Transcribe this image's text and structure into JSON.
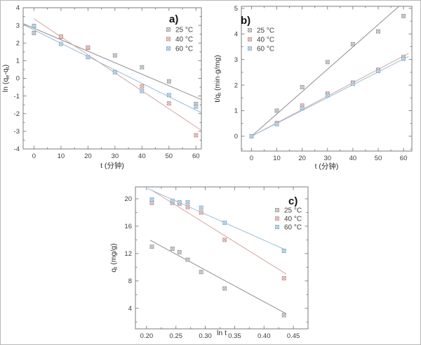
{
  "figure": {
    "description": "Adsorption kinetics figure with three panels",
    "background": "#ffffff"
  },
  "colors": {
    "frame": "#7c7c7c",
    "tick_text": "#3c3c3c",
    "label_text": "#2e2e2e",
    "panel_letter": "#111111",
    "series": {
      "25 °C": {
        "marker": "#9a9a9a",
        "fill": "#f4f4f4",
        "line": "#8f8f8f"
      },
      "40 °C": {
        "marker": "#c99090",
        "fill": "#f9eded",
        "line": "#d2a6a6"
      },
      "60 °C": {
        "marker": "#84adc9",
        "fill": "#ecf2f7",
        "line": "#9bbdd5"
      }
    }
  },
  "chart_data": [
    {
      "id": "a",
      "type": "scatter",
      "panel_label": "a)",
      "xlabel": "t (分钟)",
      "ylabel": "ln (qe-qt)",
      "ylabel_parts": [
        {
          "t": "ln (q"
        },
        {
          "t": "e",
          "sub": true
        },
        {
          "t": "-q"
        },
        {
          "t": "t",
          "sub": true
        },
        {
          "t": ")"
        }
      ],
      "xlim": [
        -4,
        62
      ],
      "ylim": [
        -4,
        4
      ],
      "xticks": [
        0,
        10,
        20,
        30,
        40,
        50,
        60
      ],
      "yticks": [
        -4,
        -3,
        -2,
        -1,
        0,
        1,
        2,
        3,
        4
      ],
      "x_tick_decimals": 0,
      "y_tick_decimals": 0,
      "legend_pos": "top-right",
      "series": [
        {
          "name": "25 °C",
          "x": [
            0,
            10,
            20,
            30,
            40,
            50,
            60
          ],
          "y": [
            2.57,
            2.35,
            1.72,
            1.3,
            0.63,
            -0.17,
            -1.45
          ],
          "fit": [
            [
              -4,
              3.1
            ],
            [
              62,
              -1.2
            ]
          ]
        },
        {
          "name": "40 °C",
          "x": [
            0,
            10,
            20,
            30,
            40,
            50,
            60
          ],
          "y": [
            2.97,
            2.37,
            1.75,
            0.35,
            -0.45,
            -1.42,
            -3.22
          ],
          "fit": [
            [
              0,
              3.37
            ],
            [
              62,
              -2.95
            ]
          ]
        },
        {
          "name": "60 °C",
          "x": [
            0,
            10,
            20,
            30,
            40,
            50,
            60
          ],
          "y": [
            2.97,
            1.95,
            1.2,
            0.35,
            -0.72,
            -0.95,
            -1.6
          ],
          "fit": [
            [
              -3,
              2.97
            ],
            [
              62,
              -1.95
            ]
          ]
        }
      ]
    },
    {
      "id": "b",
      "type": "scatter",
      "panel_label": "b)",
      "xlabel": "t (分钟)",
      "ylabel": "t/qt (min·g/mg)",
      "ylabel_parts": [
        {
          "t": "t/q"
        },
        {
          "t": "t",
          "sub": true
        },
        {
          "t": " (min·g/mg)"
        }
      ],
      "xlim": [
        -4,
        63.3
      ],
      "ylim": [
        -0.58,
        5.08
      ],
      "xticks": [
        0,
        10,
        20,
        30,
        40,
        50,
        60
      ],
      "yticks": [
        0,
        1,
        2,
        3,
        4,
        5
      ],
      "x_tick_decimals": 0,
      "y_tick_decimals": 0,
      "legend_pos": "top-left",
      "series": [
        {
          "name": "25 °C",
          "x": [
            0,
            10,
            20,
            30,
            40,
            50,
            60
          ],
          "y": [
            0,
            1.0,
            1.92,
            2.9,
            3.6,
            4.1,
            4.7
          ],
          "fit": [
            [
              0,
              0
            ],
            [
              58.2,
              5.08
            ]
          ]
        },
        {
          "name": "40 °C",
          "x": [
            0,
            10,
            20,
            30,
            40,
            50,
            60
          ],
          "y": [
            0,
            0.52,
            1.2,
            1.67,
            2.1,
            2.6,
            3.1
          ],
          "fit": [
            [
              0,
              0
            ],
            [
              62,
              3.24
            ]
          ]
        },
        {
          "name": "60 °C",
          "x": [
            0,
            10,
            20,
            30,
            40,
            50,
            60
          ],
          "y": [
            0,
            0.47,
            1.1,
            1.6,
            2.05,
            2.55,
            3.03
          ],
          "fit": [
            [
              0,
              0
            ],
            [
              62,
              3.12
            ]
          ]
        }
      ]
    },
    {
      "id": "c",
      "type": "scatter",
      "panel_label": "c)",
      "xlabel": "ln t",
      "ylabel": "qt (mg/g)",
      "ylabel_parts": [
        {
          "t": "q"
        },
        {
          "t": "t",
          "sub": true
        },
        {
          "t": " (mg/g)"
        }
      ],
      "xlim": [
        0.181,
        0.475
      ],
      "ylim": [
        1.0,
        21.74
      ],
      "xticks": [
        0.2,
        0.25,
        0.3,
        0.35,
        0.4,
        0.45
      ],
      "yticks": [
        4,
        8,
        12,
        16,
        20
      ],
      "x_tick_decimals": 2,
      "y_tick_decimals": 0,
      "legend_pos": "right",
      "series": [
        {
          "name": "25 °C",
          "x": [
            0.209,
            0.244,
            0.256,
            0.27,
            0.293,
            0.333,
            0.434
          ],
          "y": [
            13.0,
            12.7,
            12.2,
            11.1,
            9.3,
            6.9,
            3.0
          ],
          "fit": [
            [
              0.206,
              13.95
            ],
            [
              0.438,
              3.2
            ]
          ]
        },
        {
          "name": "40 °C",
          "x": [
            0.209,
            0.244,
            0.256,
            0.27,
            0.293,
            0.333,
            0.434
          ],
          "y": [
            19.4,
            19.4,
            19.3,
            18.8,
            18.0,
            14.0,
            8.4
          ],
          "fit": [
            [
              0.208,
              21.3
            ],
            [
              0.438,
              9.0
            ]
          ]
        },
        {
          "name": "60 °C",
          "x": [
            0.209,
            0.244,
            0.256,
            0.27,
            0.293,
            0.333,
            0.434
          ],
          "y": [
            19.9,
            19.7,
            19.5,
            19.5,
            18.7,
            16.5,
            12.4
          ],
          "fit": [
            [
              0.202,
              21.5
            ],
            [
              0.438,
              12.5
            ]
          ]
        }
      ]
    }
  ]
}
